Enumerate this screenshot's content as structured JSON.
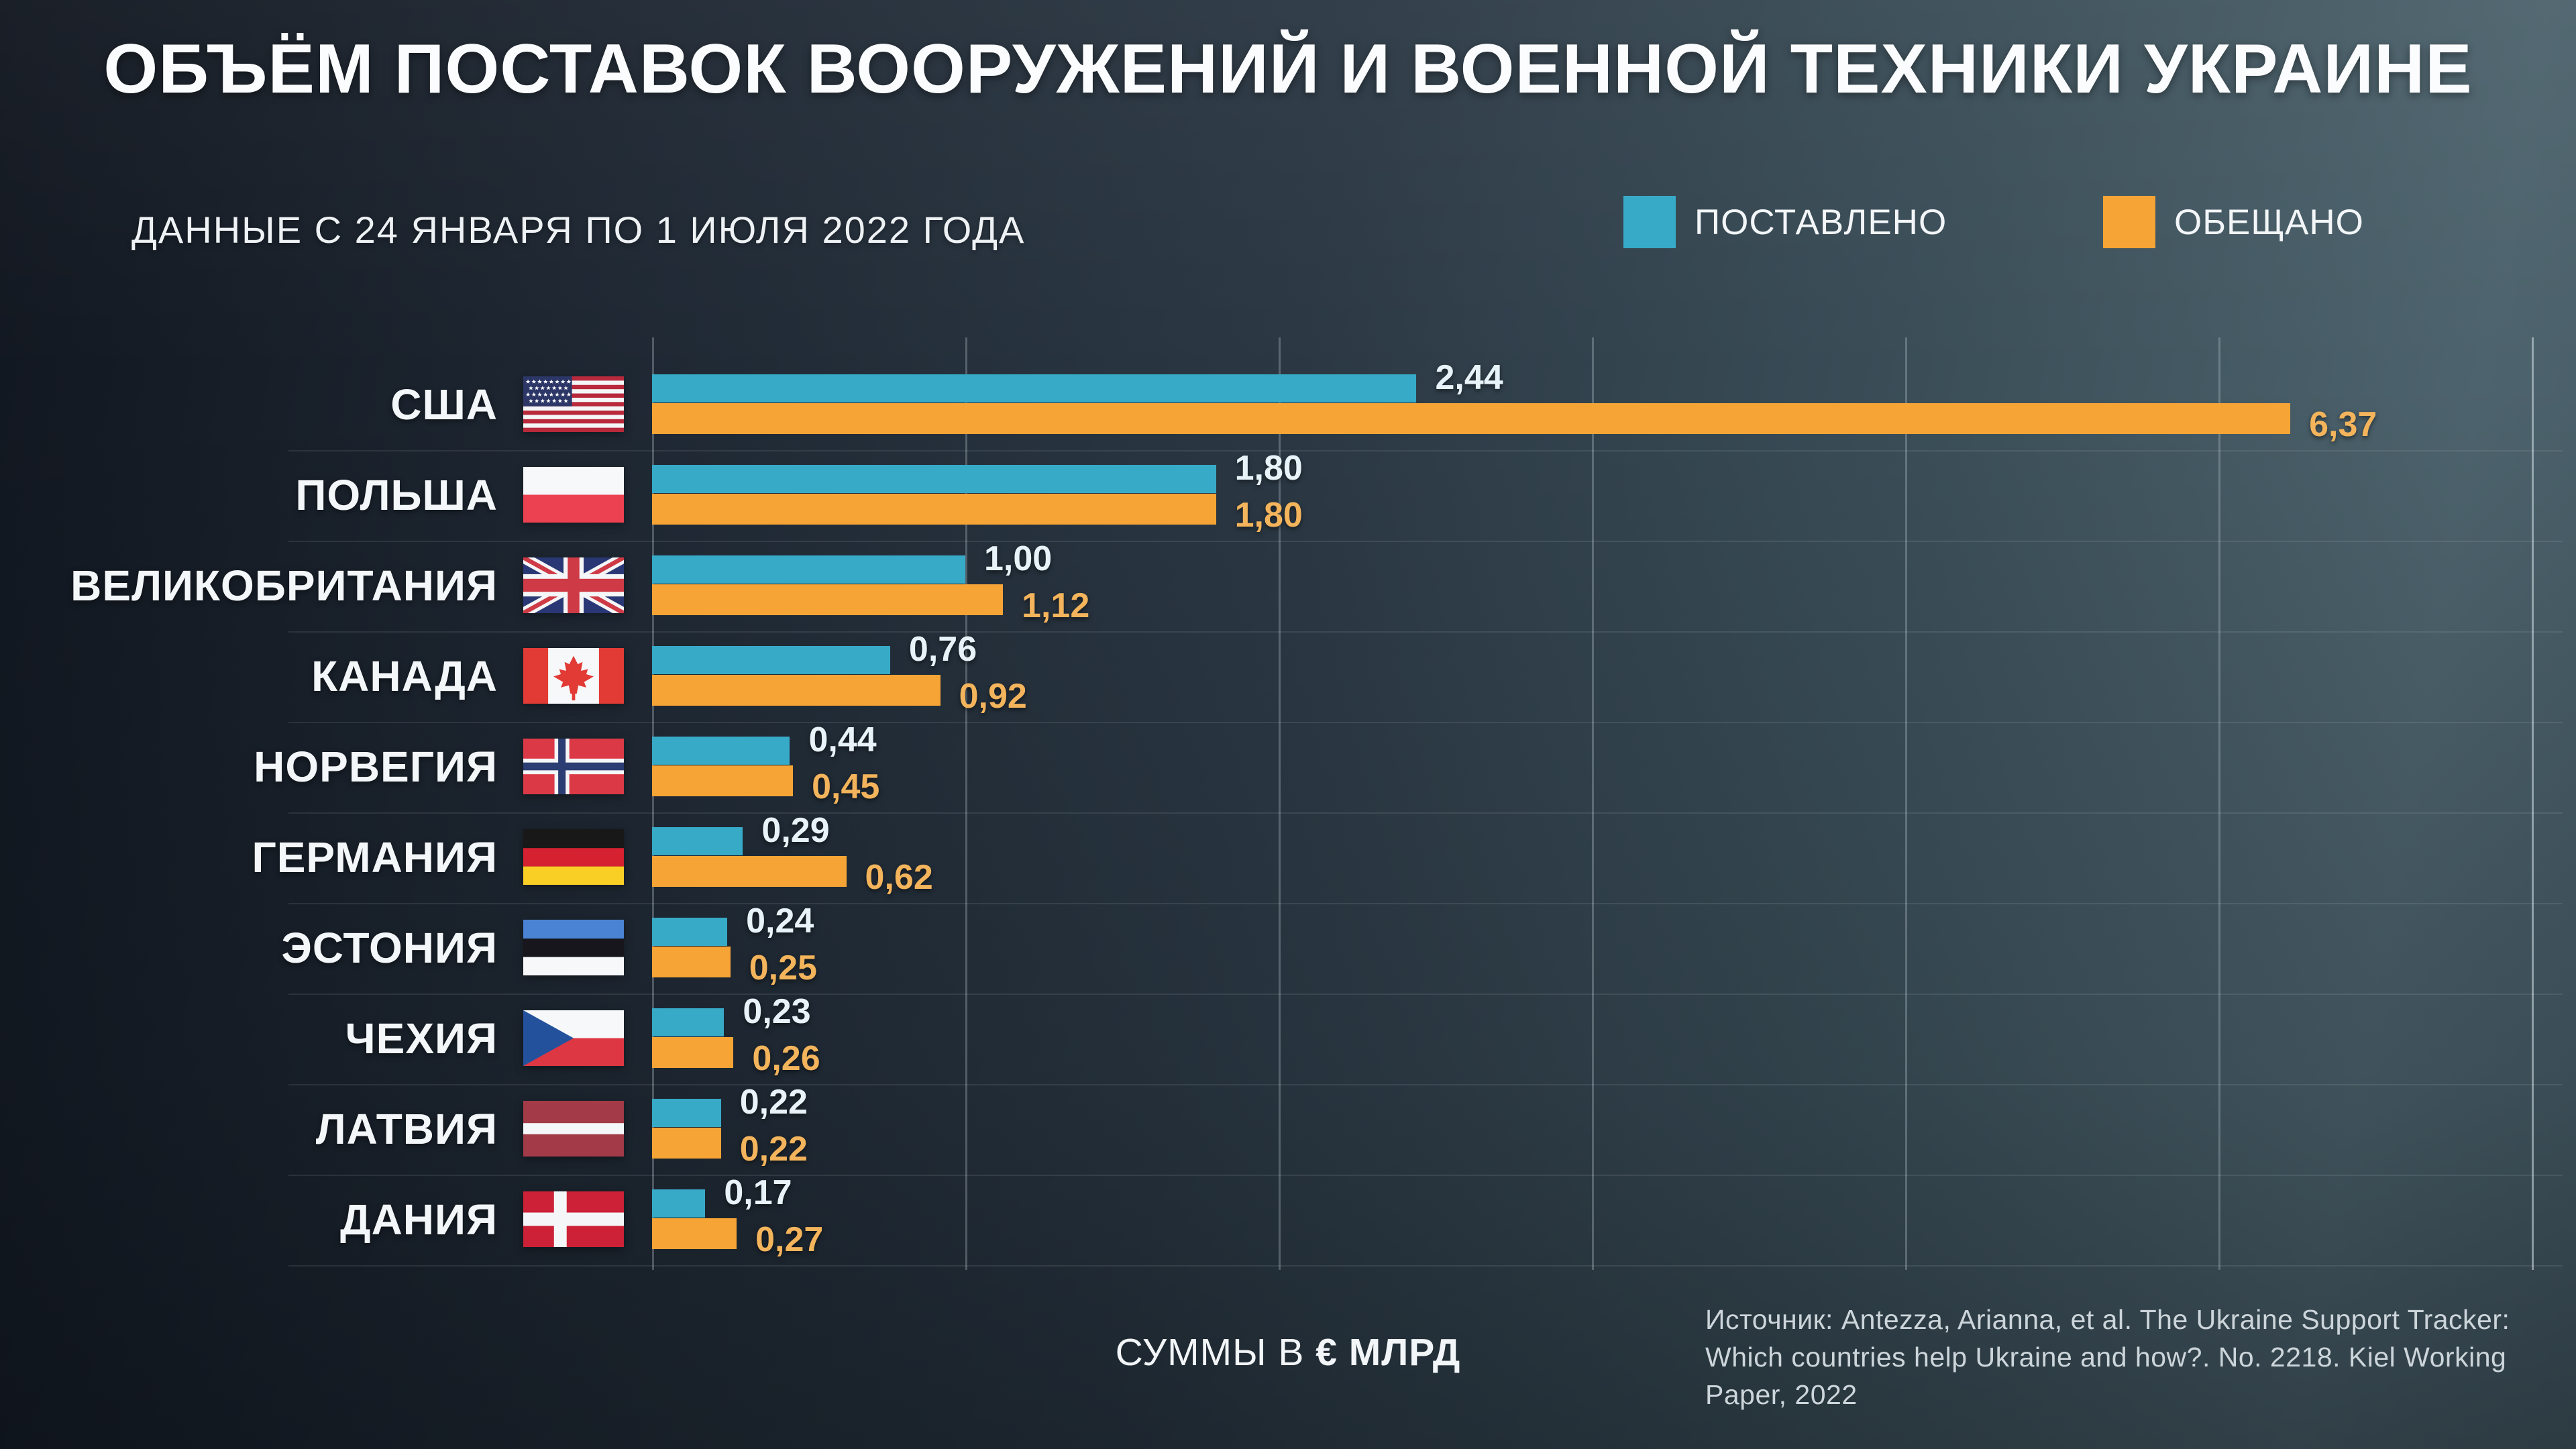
{
  "title": "ОБЪЁМ ПОСТАВОК ВООРУЖЕНИЙ И ВОЕННОЙ ТЕХНИКИ УКРАИНЕ",
  "subtitle": "ДАННЫЕ С 24 ЯНВАРЯ ПО 1 ИЮЛЯ 2022 ГОДА",
  "legend": {
    "delivered": "ПОСТАВЛЕНО",
    "promised": "ОБЕЩАНО"
  },
  "footer": {
    "sums_prefix": "СУММЫ В ",
    "sums_bold": "€ МЛРД",
    "source_line1": "Источник: Antezza, Arianna, et al. The Ukraine Support Tracker:",
    "source_line2": "Which countries help Ukraine and how?. No. 2218. Kiel Working Paper, 2022"
  },
  "colors": {
    "delivered": "#37aac7",
    "promised": "#f6a436",
    "delivered_label": "#e7f3f8",
    "promised_label": "#f3b45c",
    "background_dark": "#11161f",
    "background_light": "#4d636d"
  },
  "chart_data": {
    "type": "bar",
    "orientation": "horizontal",
    "title": "ОБЪЁМ ПОСТАВОК ВООРУЖЕНИЙ И ВОЕННОЙ ТЕХНИКИ УКРАИНЕ",
    "units": "€ млрд",
    "xlim": [
      0,
      6.55
    ],
    "x_gridline_step": 1.0,
    "grid": "vertical-lines",
    "legend_position": "top-right",
    "series_names": [
      "ПОСТАВЛЕНО",
      "ОБЕЩАНО"
    ],
    "categories": [
      "США",
      "ПОЛЬША",
      "ВЕЛИКОБРИТАНИЯ",
      "КАНАДА",
      "НОРВЕГИЯ",
      "ГЕРМАНИЯ",
      "ЭСТОНИЯ",
      "ЧЕХИЯ",
      "ЛАТВИЯ",
      "ДАНИЯ"
    ],
    "rows": [
      {
        "country": "США",
        "flag": "usa",
        "delivered": 2.44,
        "promised": 6.37,
        "delivered_label": "2,44",
        "promised_label": "6,37"
      },
      {
        "country": "ПОЛЬША",
        "flag": "poland",
        "delivered": 1.8,
        "promised": 1.8,
        "delivered_label": "1,80",
        "promised_label": "1,80"
      },
      {
        "country": "ВЕЛИКОБРИТАНИЯ",
        "flag": "uk",
        "delivered": 1.0,
        "promised": 1.12,
        "delivered_label": "1,00",
        "promised_label": "1,12"
      },
      {
        "country": "КАНАДА",
        "flag": "canada",
        "delivered": 0.76,
        "promised": 0.92,
        "delivered_label": "0,76",
        "promised_label": "0,92"
      },
      {
        "country": "НОРВЕГИЯ",
        "flag": "norway",
        "delivered": 0.44,
        "promised": 0.45,
        "delivered_label": "0,44",
        "promised_label": "0,45"
      },
      {
        "country": "ГЕРМАНИЯ",
        "flag": "germany",
        "delivered": 0.29,
        "promised": 0.62,
        "delivered_label": "0,29",
        "promised_label": "0,62"
      },
      {
        "country": "ЭСТОНИЯ",
        "flag": "estonia",
        "delivered": 0.24,
        "promised": 0.25,
        "delivered_label": "0,24",
        "promised_label": "0,25"
      },
      {
        "country": "ЧЕХИЯ",
        "flag": "czechia",
        "delivered": 0.23,
        "promised": 0.26,
        "delivered_label": "0,23",
        "promised_label": "0,26"
      },
      {
        "country": "ЛАТВИЯ",
        "flag": "latvia",
        "delivered": 0.22,
        "promised": 0.22,
        "delivered_label": "0,22",
        "promised_label": "0,22"
      },
      {
        "country": "ДАНИЯ",
        "flag": "denmark",
        "delivered": 0.17,
        "promised": 0.27,
        "delivered_label": "0,17",
        "promised_label": "0,27"
      }
    ]
  }
}
